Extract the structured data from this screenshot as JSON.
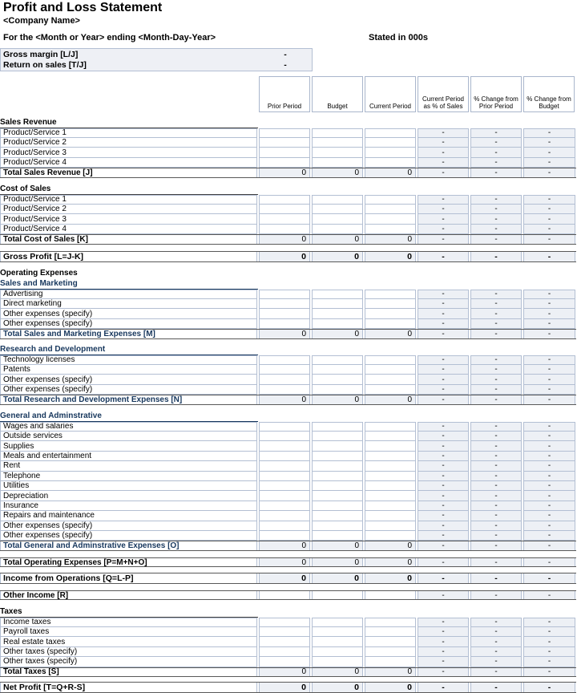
{
  "header": {
    "title": "Profit and Loss Statement",
    "company": "<Company Name>",
    "period_line": "For the <Month or Year> ending <Month-Day-Year>",
    "stated_in": "Stated in 000s"
  },
  "summary_box": {
    "rows": [
      {
        "label": "Gross margin  [L/J]",
        "value": "-"
      },
      {
        "label": "Return on sales  [T/J]",
        "value": "-"
      }
    ]
  },
  "columns": [
    "Prior Period",
    "Budget",
    "Current Period",
    "Current Period as % of Sales",
    "% Change from Prior Period",
    "% Change from Budget"
  ],
  "colors": {
    "navy_accent": "#17375d",
    "shaded_cell": "#edf0f5",
    "light_border": "#b3bfd3",
    "dark_border": "#595959",
    "summary_bg": "#eef0f5"
  },
  "sections": [
    {
      "id": "sales-revenue",
      "header": {
        "text": "Sales Revenue",
        "style": "black",
        "underline": true
      },
      "rows": [
        {
          "label": "Product/Service 1",
          "type": "input",
          "dashes": [
            "-",
            "-",
            "-"
          ]
        },
        {
          "label": "Product/Service 2",
          "type": "input",
          "dashes": [
            "-",
            "-",
            "-"
          ]
        },
        {
          "label": "Product/Service 3",
          "type": "input",
          "dashes": [
            "-",
            "-",
            "-"
          ]
        },
        {
          "label": "Product/Service 4",
          "type": "input",
          "dashes": [
            "-",
            "-",
            "-"
          ]
        },
        {
          "label": "Total Sales Revenue  [J]",
          "type": "total",
          "style": "black",
          "values": [
            "0",
            "0",
            "0"
          ],
          "dashes": [
            "-",
            "-",
            "-"
          ]
        }
      ]
    },
    {
      "id": "cost-of-sales",
      "header": {
        "text": "Cost of Sales",
        "style": "black",
        "underline": true
      },
      "rows": [
        {
          "label": "Product/Service 1",
          "type": "input",
          "dashes": [
            "-",
            "-",
            "-"
          ]
        },
        {
          "label": "Product/Service 2",
          "type": "input",
          "dashes": [
            "-",
            "-",
            "-"
          ]
        },
        {
          "label": "Product/Service 3",
          "type": "input",
          "dashes": [
            "-",
            "-",
            "-"
          ]
        },
        {
          "label": "Product/Service 4",
          "type": "input",
          "dashes": [
            "-",
            "-",
            "-"
          ]
        },
        {
          "label": "Total Cost of Sales  [K]",
          "type": "total",
          "style": "black",
          "values": [
            "0",
            "0",
            "0"
          ],
          "dashes": [
            "-",
            "-",
            "-"
          ]
        }
      ]
    },
    {
      "id": "gross-profit",
      "rows": [
        {
          "label": "Gross Profit  [L=J-K]",
          "type": "grand",
          "style": "black",
          "values": [
            "0",
            "0",
            "0"
          ],
          "dashes": [
            "-",
            "-",
            "-"
          ]
        }
      ]
    },
    {
      "id": "operating-expenses",
      "header": {
        "text": "Operating Expenses",
        "style": "black",
        "underline": false
      },
      "rows": []
    },
    {
      "id": "sales-marketing",
      "header": {
        "text": "Sales and Marketing",
        "style": "navy",
        "underline": true
      },
      "rows": [
        {
          "label": "Advertising",
          "type": "input",
          "dashes": [
            "-",
            "-",
            "-"
          ]
        },
        {
          "label": "Direct marketing",
          "type": "input",
          "dashes": [
            "-",
            "-",
            "-"
          ]
        },
        {
          "label": "Other expenses (specify)",
          "type": "input",
          "dashes": [
            "-",
            "-",
            "-"
          ]
        },
        {
          "label": "Other expenses (specify)",
          "type": "input",
          "dashes": [
            "-",
            "-",
            "-"
          ]
        },
        {
          "label": "Total Sales and Marketing Expenses  [M]",
          "type": "total",
          "style": "navy",
          "values": [
            "0",
            "0",
            "0"
          ],
          "dashes": [
            "-",
            "-",
            "-"
          ]
        }
      ]
    },
    {
      "id": "research-development",
      "header": {
        "text": "Research and Development",
        "style": "navy",
        "underline": true
      },
      "rows": [
        {
          "label": "Technology licenses",
          "type": "input",
          "dashes": [
            "-",
            "-",
            "-"
          ]
        },
        {
          "label": "Patents",
          "type": "input",
          "dashes": [
            "-",
            "-",
            "-"
          ]
        },
        {
          "label": "Other expenses (specify)",
          "type": "input",
          "dashes": [
            "-",
            "-",
            "-"
          ]
        },
        {
          "label": "Other expenses (specify)",
          "type": "input",
          "dashes": [
            "-",
            "-",
            "-"
          ]
        },
        {
          "label": "Total Research and Development Expenses  [N]",
          "type": "total",
          "style": "navy",
          "values": [
            "0",
            "0",
            "0"
          ],
          "dashes": [
            "-",
            "-",
            "-"
          ]
        }
      ]
    },
    {
      "id": "general-administrative",
      "header": {
        "text": "General and Adminstrative",
        "style": "navy",
        "underline": true
      },
      "rows": [
        {
          "label": "Wages and salaries",
          "type": "input",
          "dashes": [
            "-",
            "-",
            "-"
          ]
        },
        {
          "label": "Outside services",
          "type": "input",
          "dashes": [
            "-",
            "-",
            "-"
          ]
        },
        {
          "label": "Supplies",
          "type": "input",
          "dashes": [
            "-",
            "-",
            "-"
          ]
        },
        {
          "label": "Meals and entertainment",
          "type": "input",
          "dashes": [
            "-",
            "-",
            "-"
          ]
        },
        {
          "label": "Rent",
          "type": "input",
          "dashes": [
            "-",
            "-",
            "-"
          ]
        },
        {
          "label": "Telephone",
          "type": "input",
          "dashes": [
            "-",
            "-",
            "-"
          ]
        },
        {
          "label": "Utilities",
          "type": "input",
          "dashes": [
            "-",
            "-",
            "-"
          ]
        },
        {
          "label": "Depreciation",
          "type": "input",
          "dashes": [
            "-",
            "-",
            "-"
          ]
        },
        {
          "label": "Insurance",
          "type": "input",
          "dashes": [
            "-",
            "-",
            "-"
          ]
        },
        {
          "label": "Repairs and maintenance",
          "type": "input",
          "dashes": [
            "-",
            "-",
            "-"
          ]
        },
        {
          "label": "Other expenses (specify)",
          "type": "input",
          "dashes": [
            "-",
            "-",
            "-"
          ]
        },
        {
          "label": "Other expenses (specify)",
          "type": "input",
          "dashes": [
            "-",
            "-",
            "-"
          ]
        },
        {
          "label": "Total General and Adminstrative Expenses  [O]",
          "type": "total",
          "style": "navy",
          "values": [
            "0",
            "0",
            "0"
          ],
          "dashes": [
            "-",
            "-",
            "-"
          ]
        }
      ]
    },
    {
      "id": "total-operating-expenses",
      "rows": [
        {
          "label": "Total Operating Expenses  [P=M+N+O]",
          "type": "total",
          "style": "black",
          "values": [
            "0",
            "0",
            "0"
          ],
          "dashes": [
            "-",
            "-",
            "-"
          ]
        }
      ]
    },
    {
      "id": "income-from-operations",
      "rows": [
        {
          "label": "Income from Operations  [Q=L-P]",
          "type": "grand",
          "style": "black",
          "values": [
            "0",
            "0",
            "0"
          ],
          "dashes": [
            "-",
            "-",
            "-"
          ]
        }
      ]
    },
    {
      "id": "other-income",
      "rows": [
        {
          "label": "Other Income  [R]",
          "type": "other",
          "style": "black",
          "dashes": [
            "-",
            "-",
            "-"
          ]
        }
      ]
    },
    {
      "id": "taxes",
      "header": {
        "text": "Taxes",
        "style": "black",
        "underline": true
      },
      "rows": [
        {
          "label": "Income taxes",
          "type": "input",
          "dashes": [
            "-",
            "-",
            "-"
          ]
        },
        {
          "label": "Payroll taxes",
          "type": "input",
          "dashes": [
            "-",
            "-",
            "-"
          ]
        },
        {
          "label": "Real estate taxes",
          "type": "input",
          "dashes": [
            "-",
            "-",
            "-"
          ]
        },
        {
          "label": "Other taxes (specify)",
          "type": "input",
          "dashes": [
            "-",
            "-",
            "-"
          ]
        },
        {
          "label": "Other taxes (specify)",
          "type": "input",
          "dashes": [
            "-",
            "-",
            "-"
          ]
        },
        {
          "label": "Total Taxes  [S]",
          "type": "total",
          "style": "black",
          "values": [
            "0",
            "0",
            "0"
          ],
          "dashes": [
            "-",
            "-",
            "-"
          ]
        }
      ]
    },
    {
      "id": "net-profit",
      "rows": [
        {
          "label": "Net Profit  [T=Q+R-S]",
          "type": "grand",
          "style": "black",
          "values": [
            "0",
            "0",
            "0"
          ],
          "dashes": [
            "-",
            "-",
            "-"
          ]
        }
      ]
    }
  ]
}
